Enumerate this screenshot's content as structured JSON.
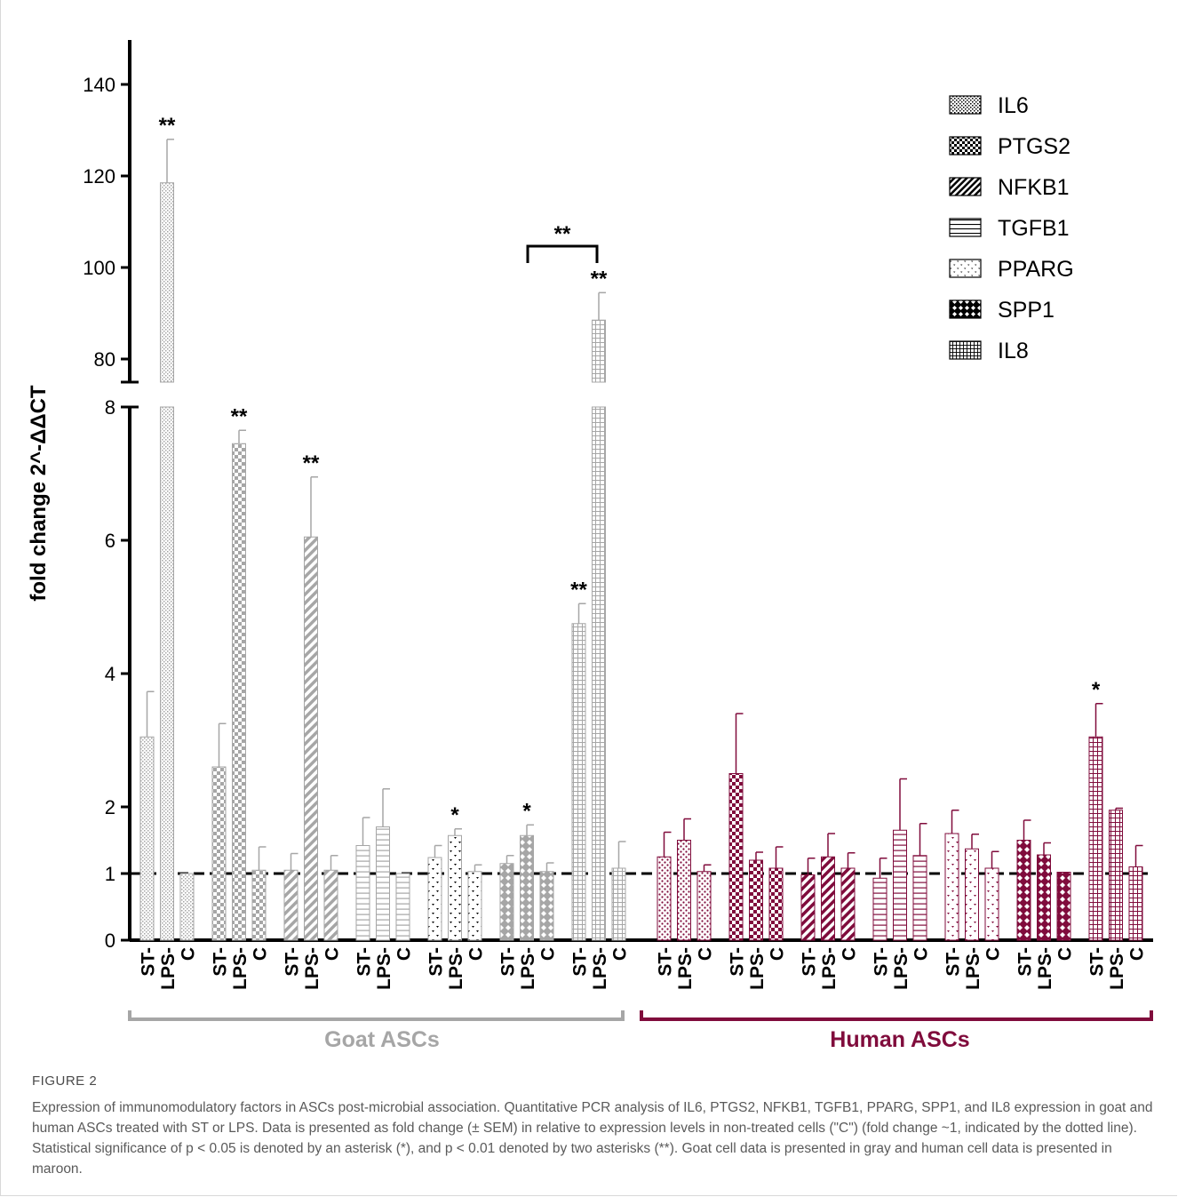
{
  "colors": {
    "goat": "#a6a6a6",
    "human": "#800c3c",
    "axis": "#000000",
    "caption": "#5a5a5a"
  },
  "chart_data": {
    "type": "bar",
    "ylabel": "fold change 2^-ΔΔCT",
    "y_axis_lower": {
      "range": [
        0,
        8
      ],
      "ticks": [
        "0",
        "1",
        "2",
        "4",
        "6",
        "8"
      ]
    },
    "y_axis_upper": {
      "range": [
        75,
        150
      ],
      "ticks": [
        "80",
        "100",
        "120",
        "140"
      ]
    },
    "reference_line": 1,
    "genes": [
      "IL6",
      "PTGS2",
      "NFKB1",
      "TGFB1",
      "PPARG",
      "SPP1",
      "IL8"
    ],
    "treatments": [
      "ST",
      "LPS",
      "C"
    ],
    "legend_position": "top-right",
    "group_labels": [
      "Goat ASCs",
      "Human ASCs"
    ],
    "series": [
      {
        "name": "Goat ASCs",
        "color": "#a6a6a6",
        "bars": [
          {
            "gene": "IL6",
            "treatment": "ST",
            "value": 3.05,
            "error": 0.68,
            "sig": ""
          },
          {
            "gene": "IL6",
            "treatment": "LPS",
            "value": 118.5,
            "error": 9.5,
            "sig": "**"
          },
          {
            "gene": "IL6",
            "treatment": "C",
            "value": 1.0,
            "error": 0,
            "sig": ""
          },
          {
            "gene": "PTGS2",
            "treatment": "ST",
            "value": 2.6,
            "error": 0.65,
            "sig": ""
          },
          {
            "gene": "PTGS2",
            "treatment": "LPS",
            "value": 7.45,
            "error": 0.2,
            "sig": "**"
          },
          {
            "gene": "PTGS2",
            "treatment": "C",
            "value": 1.05,
            "error": 0.35,
            "sig": ""
          },
          {
            "gene": "NFKB1",
            "treatment": "ST",
            "value": 1.05,
            "error": 0.25,
            "sig": ""
          },
          {
            "gene": "NFKB1",
            "treatment": "LPS",
            "value": 6.05,
            "error": 0.9,
            "sig": "**"
          },
          {
            "gene": "NFKB1",
            "treatment": "C",
            "value": 1.05,
            "error": 0.22,
            "sig": ""
          },
          {
            "gene": "TGFB1",
            "treatment": "ST",
            "value": 1.42,
            "error": 0.42,
            "sig": ""
          },
          {
            "gene": "TGFB1",
            "treatment": "LPS",
            "value": 1.7,
            "error": 0.57,
            "sig": ""
          },
          {
            "gene": "TGFB1",
            "treatment": "C",
            "value": 1.0,
            "error": 0,
            "sig": ""
          },
          {
            "gene": "PPARG",
            "treatment": "ST",
            "value": 1.24,
            "error": 0.18,
            "sig": ""
          },
          {
            "gene": "PPARG",
            "treatment": "LPS",
            "value": 1.57,
            "error": 0.1,
            "sig": "*"
          },
          {
            "gene": "PPARG",
            "treatment": "C",
            "value": 1.03,
            "error": 0.1,
            "sig": ""
          },
          {
            "gene": "SPP1",
            "treatment": "ST",
            "value": 1.15,
            "error": 0.12,
            "sig": ""
          },
          {
            "gene": "SPP1",
            "treatment": "LPS",
            "value": 1.57,
            "error": 0.16,
            "sig": "*"
          },
          {
            "gene": "SPP1",
            "treatment": "C",
            "value": 1.03,
            "error": 0.13,
            "sig": ""
          },
          {
            "gene": "IL8",
            "treatment": "ST",
            "value": 4.75,
            "error": 0.3,
            "sig": "**"
          },
          {
            "gene": "IL8",
            "treatment": "LPS",
            "value": 88.5,
            "error": 6.0,
            "sig": "**"
          },
          {
            "gene": "IL8",
            "treatment": "C",
            "value": 1.08,
            "error": 0.4,
            "sig": ""
          }
        ]
      },
      {
        "name": "Human ASCs",
        "color": "#800c3c",
        "bars": [
          {
            "gene": "IL6",
            "treatment": "ST",
            "value": 1.25,
            "error": 0.37,
            "sig": ""
          },
          {
            "gene": "IL6",
            "treatment": "LPS",
            "value": 1.5,
            "error": 0.32,
            "sig": ""
          },
          {
            "gene": "IL6",
            "treatment": "C",
            "value": 1.03,
            "error": 0.1,
            "sig": ""
          },
          {
            "gene": "PTGS2",
            "treatment": "ST",
            "value": 2.5,
            "error": 0.9,
            "sig": ""
          },
          {
            "gene": "PTGS2",
            "treatment": "LPS",
            "value": 1.2,
            "error": 0.12,
            "sig": ""
          },
          {
            "gene": "PTGS2",
            "treatment": "C",
            "value": 1.08,
            "error": 0.32,
            "sig": ""
          },
          {
            "gene": "NFKB1",
            "treatment": "ST",
            "value": 0.98,
            "error": 0.25,
            "sig": ""
          },
          {
            "gene": "NFKB1",
            "treatment": "LPS",
            "value": 1.25,
            "error": 0.35,
            "sig": ""
          },
          {
            "gene": "NFKB1",
            "treatment": "C",
            "value": 1.08,
            "error": 0.23,
            "sig": ""
          },
          {
            "gene": "TGFB1",
            "treatment": "ST",
            "value": 0.93,
            "error": 0.3,
            "sig": ""
          },
          {
            "gene": "TGFB1",
            "treatment": "LPS",
            "value": 1.65,
            "error": 0.77,
            "sig": ""
          },
          {
            "gene": "TGFB1",
            "treatment": "C",
            "value": 1.27,
            "error": 0.48,
            "sig": ""
          },
          {
            "gene": "PPARG",
            "treatment": "ST",
            "value": 1.6,
            "error": 0.35,
            "sig": ""
          },
          {
            "gene": "PPARG",
            "treatment": "LPS",
            "value": 1.37,
            "error": 0.22,
            "sig": ""
          },
          {
            "gene": "PPARG",
            "treatment": "C",
            "value": 1.08,
            "error": 0.25,
            "sig": ""
          },
          {
            "gene": "SPP1",
            "treatment": "ST",
            "value": 1.5,
            "error": 0.3,
            "sig": ""
          },
          {
            "gene": "SPP1",
            "treatment": "LPS",
            "value": 1.28,
            "error": 0.18,
            "sig": ""
          },
          {
            "gene": "SPP1",
            "treatment": "C",
            "value": 1.02,
            "error": 0,
            "sig": ""
          },
          {
            "gene": "IL8",
            "treatment": "ST",
            "value": 3.05,
            "error": 0.5,
            "sig": "*"
          },
          {
            "gene": "IL8",
            "treatment": "LPS",
            "value": 1.95,
            "error": 0.03,
            "sig": ""
          },
          {
            "gene": "IL8",
            "treatment": "C",
            "value": 1.1,
            "error": 0.32,
            "sig": ""
          }
        ]
      }
    ],
    "comparison_bracket": {
      "label": "**",
      "between": [
        "Goat IL8 ST",
        "Goat IL8 LPS"
      ]
    }
  },
  "caption": {
    "label": "FIGURE 2",
    "text": "Expression of immunomodulatory factors in ASCs post-microbial association. Quantitative PCR analysis of IL6, PTGS2, NFKB1, TGFB1, PPARG, SPP1, and IL8 expression in goat and human ASCs treated with ST or LPS. Data is presented as fold change (± SEM) in relative to expression levels in non-treated cells (\"C\") (fold change ~1, indicated by the dotted line). Statistical significance of p < 0.05 is denoted by an asterisk (*), and p < 0.01 denoted by two asterisks (**). Goat cell data is presented in gray and human cell data is presented in maroon."
  }
}
